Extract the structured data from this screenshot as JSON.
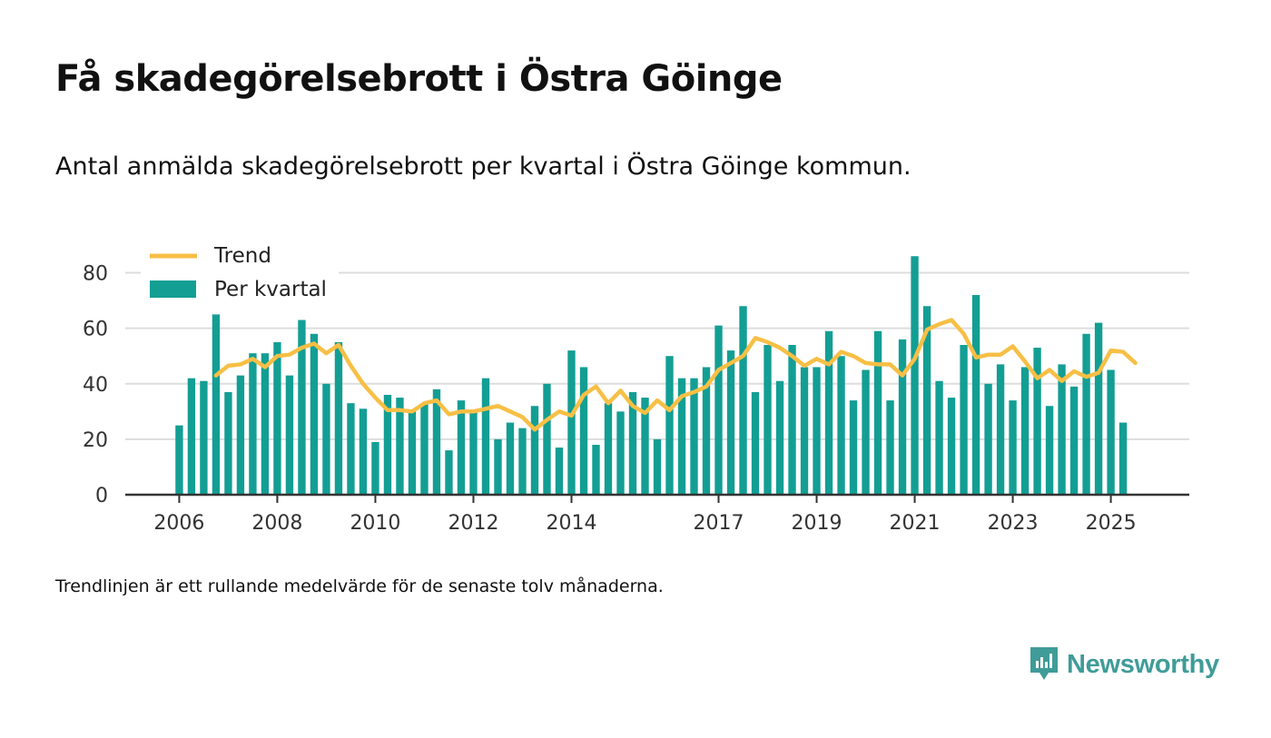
{
  "title": "Få skadegörelsebrott i Östra Göinge",
  "subtitle": "Antal anmälda skadegörelsebrott per kvartal i Östra Göinge kommun.",
  "footnote": "Trendlinjen är ett rullande medelvärde för de senaste tolv månaderna.",
  "brand": {
    "name": "Newsworthy",
    "icon": "newsworthy-logo-icon",
    "color": "#3f9c98"
  },
  "colors": {
    "bar": "#139e94",
    "trend": "#f7bf45",
    "grid": "#dddddd",
    "axis": "#333333",
    "text": "#333333"
  },
  "chart_data": {
    "type": "bar",
    "title": "Få skadegörelsebrott i Östra Göinge",
    "xlabel": "",
    "ylabel": "",
    "ylim": [
      0,
      90
    ],
    "yticks": [
      0,
      20,
      40,
      60,
      80
    ],
    "grid": true,
    "legend_position": "top-left",
    "x_domain": [
      2004.9,
      2026.6
    ],
    "x_ticks": [
      {
        "label": "2006",
        "at": 2006
      },
      {
        "label": "2008",
        "at": 2008
      },
      {
        "label": "2010",
        "at": 2010
      },
      {
        "label": "2012",
        "at": 2012
      },
      {
        "label": "2014",
        "at": 2014
      },
      {
        "label": "2017",
        "at": 2017
      },
      {
        "label": "2019",
        "at": 2019
      },
      {
        "label": "2021",
        "at": 2021
      },
      {
        "label": "2023",
        "at": 2023
      },
      {
        "label": "2025",
        "at": 2025
      }
    ],
    "start": 2006.0,
    "step": 0.25,
    "series": [
      {
        "name": "Per kvartal",
        "type": "bar",
        "values": [
          25,
          42,
          41,
          65,
          37,
          43,
          51,
          51,
          55,
          43,
          63,
          58,
          40,
          55,
          33,
          31,
          19,
          36,
          35,
          30,
          33,
          38,
          16,
          34,
          30,
          42,
          20,
          26,
          24,
          32,
          40,
          17,
          52,
          46,
          18,
          33,
          30,
          37,
          35,
          20,
          50,
          42,
          42,
          46,
          61,
          52,
          68,
          37,
          54,
          41,
          54,
          46,
          46,
          59,
          50,
          34,
          45,
          59,
          34,
          56,
          86,
          68,
          41,
          35,
          54,
          72,
          40,
          47,
          34,
          46,
          53,
          32,
          47,
          39,
          58,
          62,
          45,
          26
        ]
      },
      {
        "name": "Trend",
        "type": "line",
        "start_index": 3,
        "values": [
          43,
          46.5,
          47,
          49,
          46,
          50,
          50.5,
          53,
          54.5,
          51,
          54,
          46.5,
          40,
          35,
          30.5,
          30.5,
          30,
          33,
          34,
          29,
          30,
          30,
          31,
          32,
          30,
          28,
          23.5,
          27,
          30,
          28.5,
          36,
          39,
          33,
          37.5,
          32,
          29.5,
          34,
          30.5,
          35.5,
          37,
          39,
          45,
          47.5,
          50,
          56.5,
          55,
          53,
          50,
          46.5,
          49,
          47,
          51.5,
          50,
          47.5,
          47,
          47,
          43,
          49,
          59.5,
          61.5,
          63,
          58,
          49.5,
          50.5,
          50.5,
          53.5,
          48,
          42,
          45,
          41,
          44.5,
          42.5,
          44,
          52,
          51.5,
          47.5
        ]
      }
    ]
  }
}
